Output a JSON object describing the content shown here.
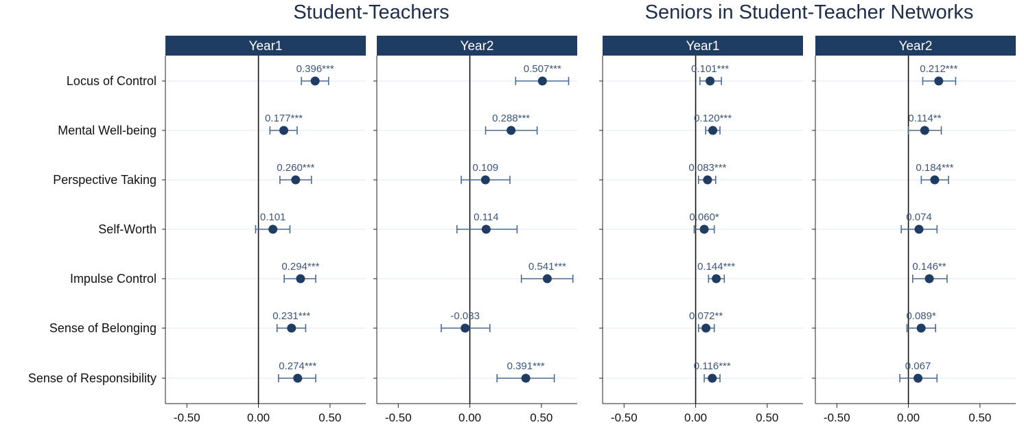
{
  "groups": [
    {
      "title": "Student-Teachers"
    },
    {
      "title": "Seniors in Student-Teacher Networks"
    }
  ],
  "colors": {
    "strip": "#1f3d63",
    "marker": "#1f3d63",
    "ci": "#4a6a90",
    "label": "#3b5577",
    "grid": "#e8eef3"
  },
  "chart_data": {
    "type": "scatter",
    "subtype": "coefficient-plot-with-confidence-intervals",
    "outcomes": [
      "Locus of Control",
      "Mental Well-being",
      "Perspective Taking",
      "Self-Worth",
      "Impulse Control",
      "Sense of Belonging",
      "Sense of Responsibility"
    ],
    "xlim": [
      -0.65,
      0.75
    ],
    "xticks": [
      -0.5,
      0.0,
      0.5
    ],
    "xtick_labels": [
      "-0.50",
      "0.00",
      "0.50"
    ],
    "reference_line": 0,
    "grid": true,
    "panels": [
      {
        "group": "Student-Teachers",
        "label": "Year1",
        "estimates": [
          0.396,
          0.177,
          0.26,
          0.101,
          0.294,
          0.231,
          0.274
        ],
        "ci_low": [
          0.3,
          0.08,
          0.15,
          -0.02,
          0.18,
          0.13,
          0.14
        ],
        "ci_high": [
          0.49,
          0.27,
          0.37,
          0.22,
          0.4,
          0.33,
          0.4
        ],
        "labels": [
          "0.396***",
          "0.177***",
          "0.260***",
          "0.101",
          "0.294***",
          "0.231***",
          "0.274***"
        ]
      },
      {
        "group": "Student-Teachers",
        "label": "Year2",
        "estimates": [
          0.507,
          0.288,
          0.109,
          0.114,
          0.541,
          -0.033,
          0.391
        ],
        "ci_low": [
          0.32,
          0.11,
          -0.06,
          -0.09,
          0.36,
          -0.2,
          0.19
        ],
        "ci_high": [
          0.69,
          0.47,
          0.28,
          0.33,
          0.72,
          0.14,
          0.59
        ],
        "labels": [
          "0.507***",
          "0.288***",
          "0.109",
          "0.114",
          "0.541***",
          "-0.033",
          "0.391***"
        ]
      },
      {
        "group": "Seniors in Student-Teacher Networks",
        "label": "Year1",
        "estimates": [
          0.101,
          0.12,
          0.083,
          0.06,
          0.144,
          0.072,
          0.116
        ],
        "ci_low": [
          0.03,
          0.07,
          0.02,
          -0.01,
          0.09,
          0.02,
          0.06
        ],
        "ci_high": [
          0.18,
          0.17,
          0.14,
          0.13,
          0.2,
          0.13,
          0.17
        ],
        "labels": [
          "0.101***",
          "0.120***",
          "0.083***",
          "0.060*",
          "0.144***",
          "0.072**",
          "0.116***"
        ]
      },
      {
        "group": "Seniors in Student-Teacher Networks",
        "label": "Year2",
        "estimates": [
          0.212,
          0.114,
          0.184,
          0.074,
          0.146,
          0.089,
          0.067
        ],
        "ci_low": [
          0.1,
          0.0,
          0.09,
          -0.05,
          0.03,
          -0.01,
          -0.06
        ],
        "ci_high": [
          0.33,
          0.23,
          0.28,
          0.2,
          0.27,
          0.19,
          0.2
        ],
        "labels": [
          "0.212***",
          "0.114**",
          "0.184***",
          "0.074",
          "0.146**",
          "0.089*",
          "0.067"
        ]
      }
    ]
  }
}
